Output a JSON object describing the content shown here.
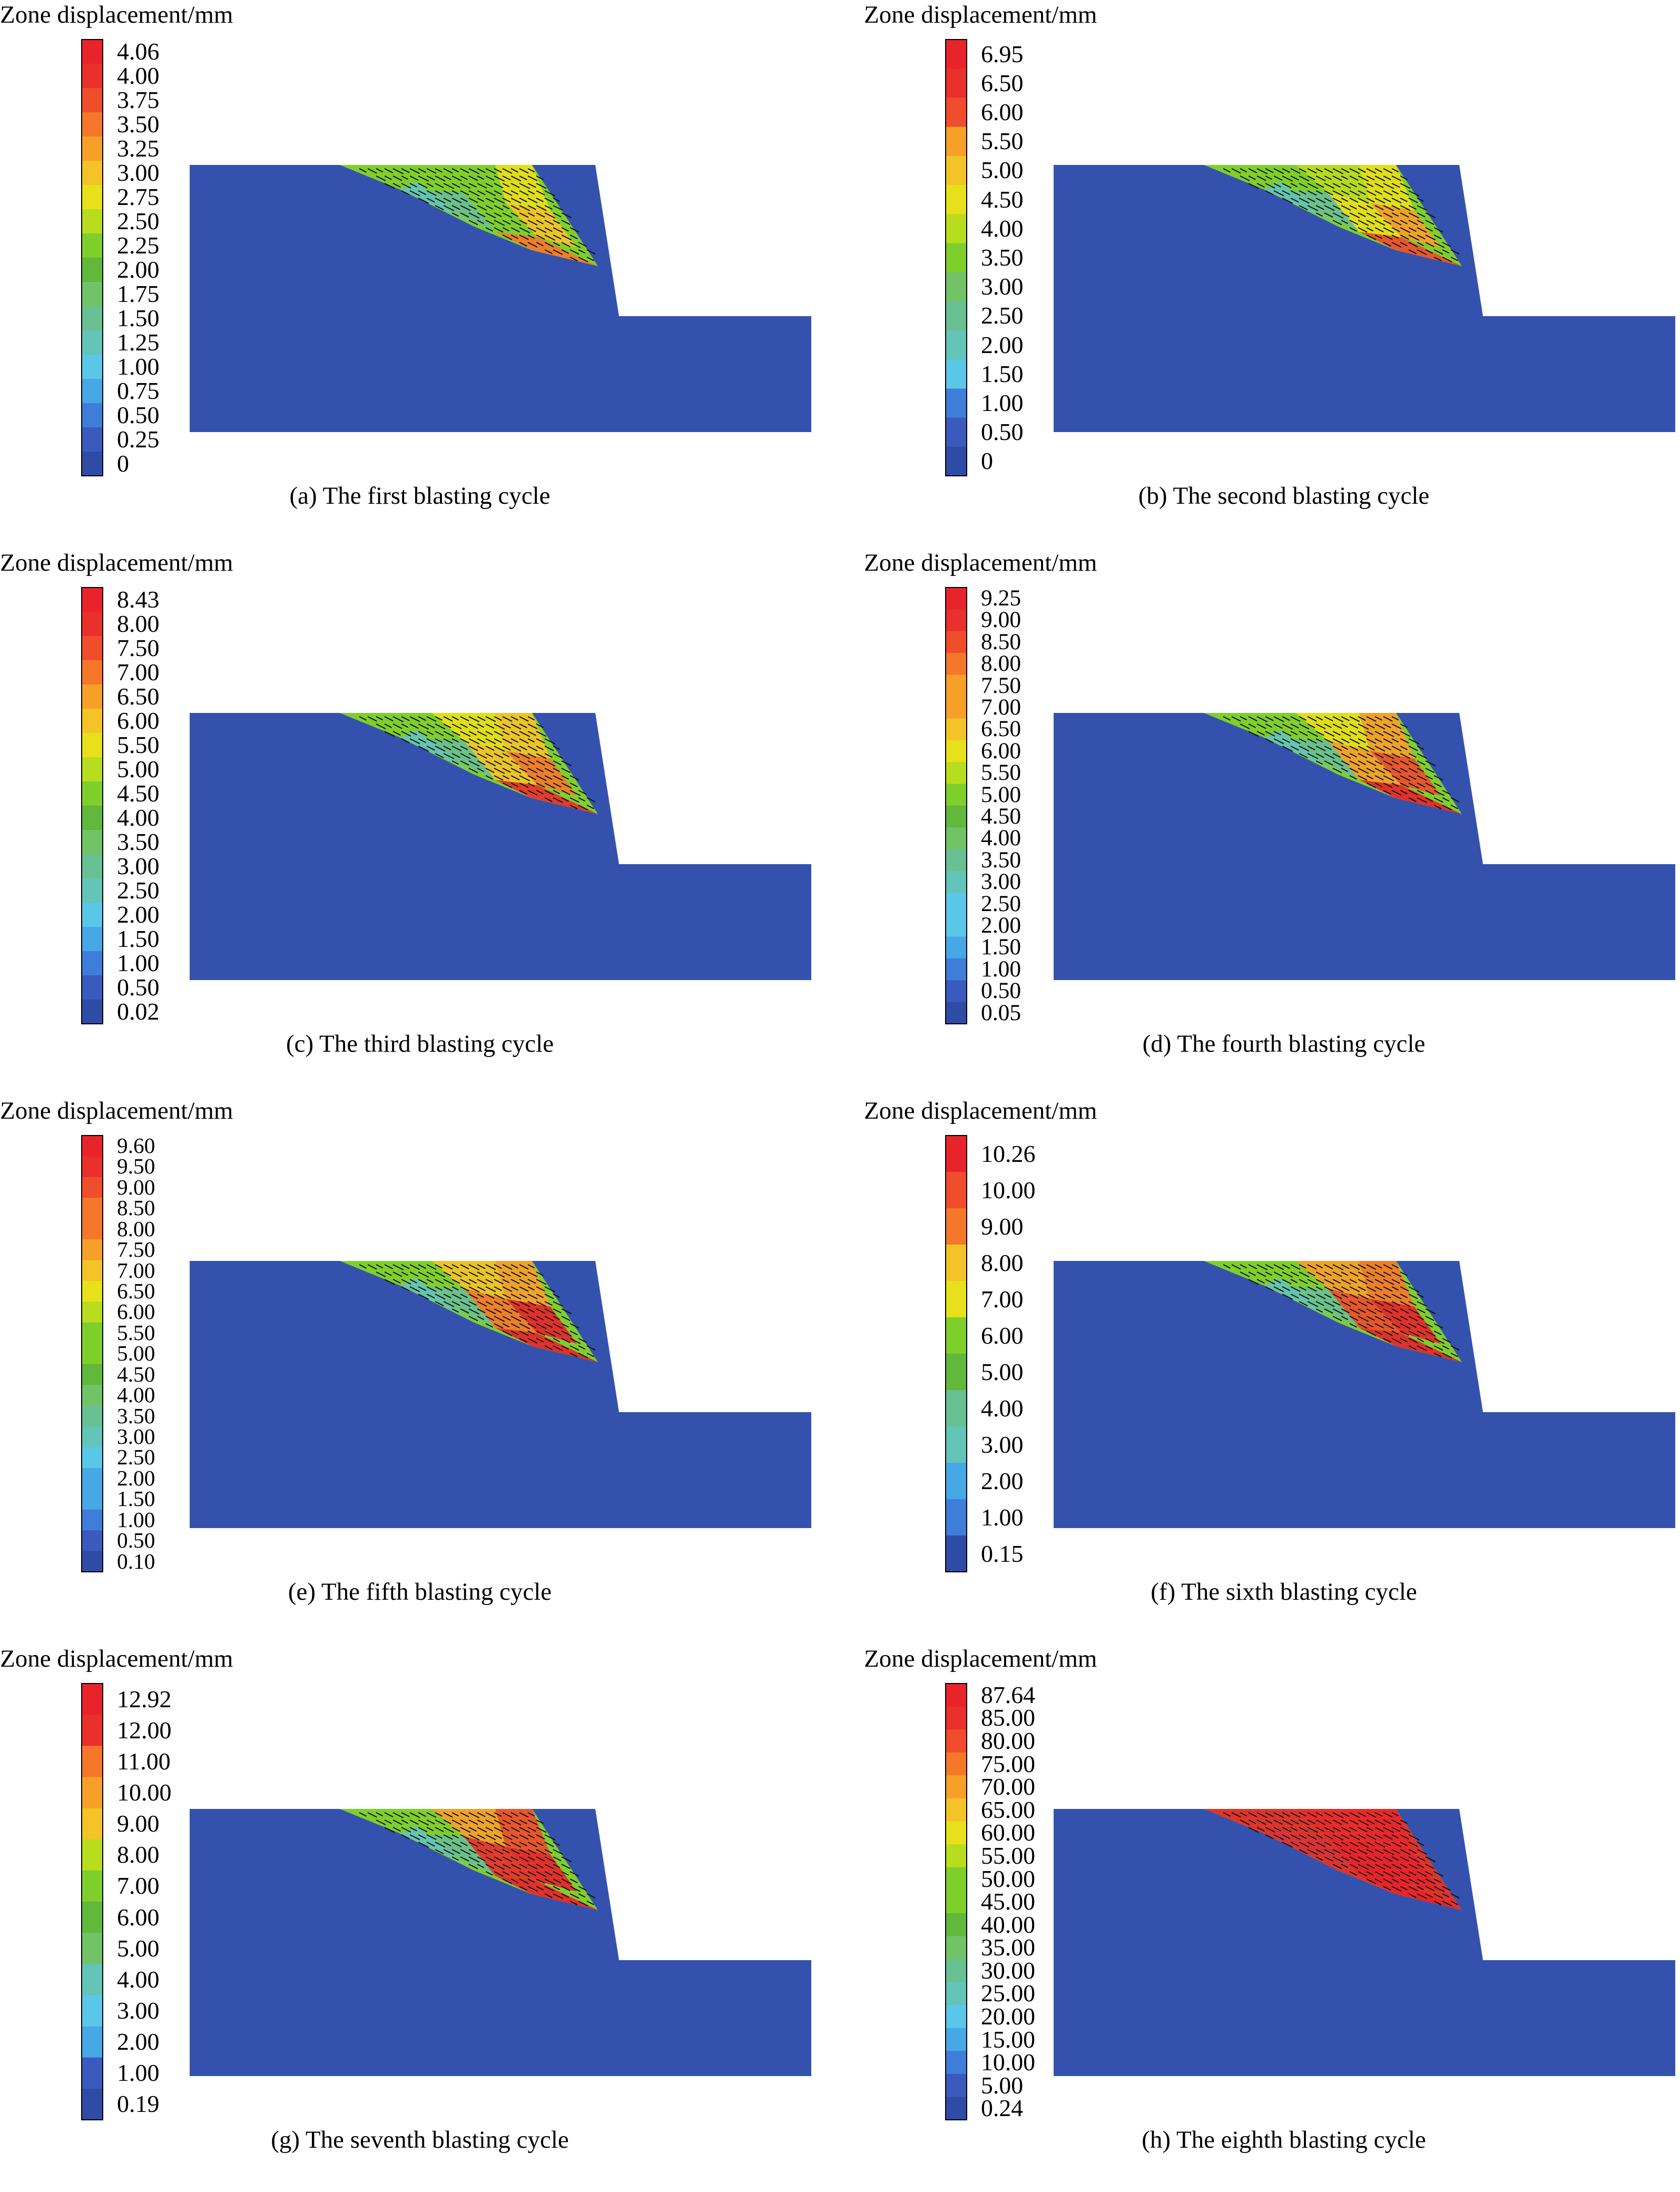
{
  "colorbar_title": "Zone displacement/mm",
  "colors": {
    "stone": "#3452ad",
    "deep_blue": "#2c4aa0",
    "scale": [
      "#2e4ca6",
      "#3a5bbd",
      "#3f7ed8",
      "#47a8e6",
      "#5bc7e8",
      "#63c4b7",
      "#68c093",
      "#72c267",
      "#61b83a",
      "#7fcf2c",
      "#b8dc1e",
      "#e8e01a",
      "#f3c328",
      "#f6a02a",
      "#f5782a",
      "#ef4d2b",
      "#e9302c",
      "#e8242a"
    ]
  },
  "panels": [
    {
      "id": "a",
      "caption": "(a) The first blasting cycle",
      "colorbar_ticks": [
        "4.06",
        "4.00",
        "3.75",
        "3.50",
        "3.25",
        "3.00",
        "2.75",
        "2.50",
        "2.25",
        "2.00",
        "1.75",
        "1.50",
        "1.25",
        "1.00",
        "0.75",
        "0.50",
        "0.25",
        "0"
      ],
      "max_value": 4.06
    },
    {
      "id": "b",
      "caption": "(b) The second blasting cycle",
      "colorbar_ticks": [
        "6.95",
        "6.50",
        "6.00",
        "5.50",
        "5.00",
        "4.50",
        "4.00",
        "3.50",
        "3.00",
        "2.50",
        "2.00",
        "1.50",
        "1.00",
        "0.50",
        "0"
      ],
      "max_value": 6.95
    },
    {
      "id": "c",
      "caption": "(c) The third blasting cycle",
      "colorbar_ticks": [
        "8.43",
        "8.00",
        "7.50",
        "7.00",
        "6.50",
        "6.00",
        "5.50",
        "5.00",
        "4.50",
        "4.00",
        "3.50",
        "3.00",
        "2.50",
        "2.00",
        "1.50",
        "1.00",
        "0.50",
        "0.02"
      ],
      "max_value": 8.43
    },
    {
      "id": "d",
      "caption": "(d) The fourth blasting cycle",
      "colorbar_ticks": [
        "9.25",
        "9.00",
        "8.50",
        "8.00",
        "7.50",
        "7.00",
        "6.50",
        "6.00",
        "5.50",
        "5.00",
        "4.50",
        "4.00",
        "3.50",
        "3.00",
        "2.50",
        "2.00",
        "1.50",
        "1.00",
        "0.50",
        "0.05"
      ],
      "max_value": 9.25
    },
    {
      "id": "e",
      "caption": "(e) The fifth blasting cycle",
      "colorbar_ticks": [
        "9.60",
        "9.50",
        "9.00",
        "8.50",
        "8.00",
        "7.50",
        "7.00",
        "6.50",
        "6.00",
        "5.50",
        "5.00",
        "4.50",
        "4.00",
        "3.50",
        "3.00",
        "2.50",
        "2.00",
        "1.50",
        "1.00",
        "0.50",
        "0.10"
      ],
      "max_value": 9.6
    },
    {
      "id": "f",
      "caption": "(f) The sixth blasting cycle",
      "colorbar_ticks": [
        "10.26",
        "10.00",
        "9.00",
        "8.00",
        "7.00",
        "6.00",
        "5.00",
        "4.00",
        "3.00",
        "2.00",
        "1.00",
        "0.15"
      ],
      "max_value": 10.26
    },
    {
      "id": "g",
      "caption": "(g) The seventh blasting cycle",
      "colorbar_ticks": [
        "12.92",
        "12.00",
        "11.00",
        "10.00",
        "9.00",
        "8.00",
        "7.00",
        "6.00",
        "5.00",
        "4.00",
        "3.00",
        "2.00",
        "1.00",
        "0.19"
      ],
      "max_value": 12.92
    },
    {
      "id": "h",
      "caption": "(h) The eighth blasting cycle",
      "colorbar_ticks": [
        "87.64",
        "85.00",
        "80.00",
        "75.00",
        "70.00",
        "65.00",
        "60.00",
        "55.00",
        "50.00",
        "45.00",
        "40.00",
        "35.00",
        "30.00",
        "25.00",
        "20.00",
        "15.00",
        "10.00",
        "5.00",
        "0.24"
      ],
      "max_value": 87.64
    }
  ]
}
